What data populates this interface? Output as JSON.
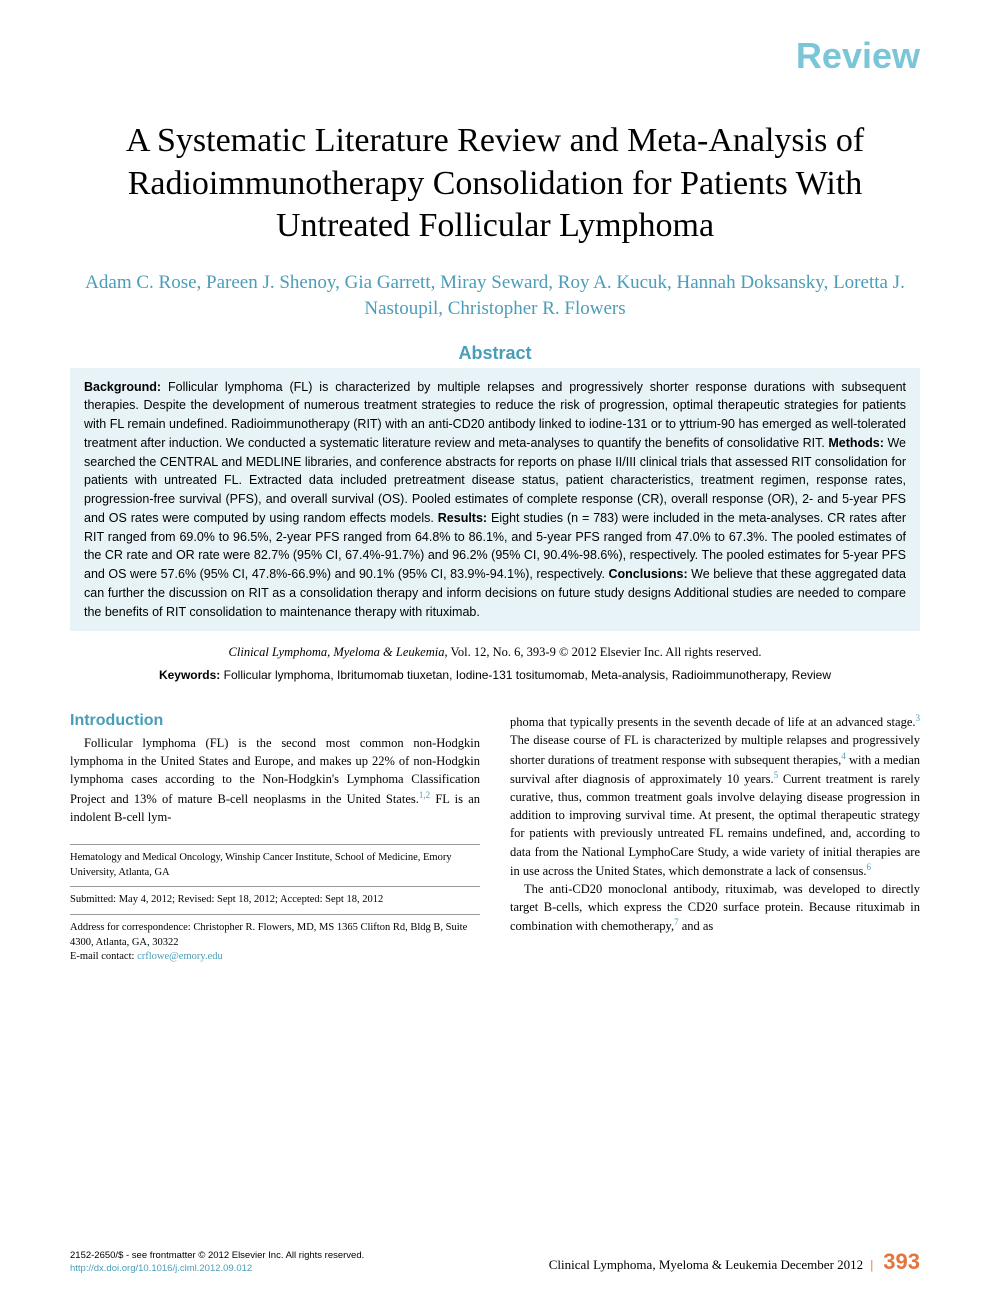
{
  "article_type": "Review",
  "colors": {
    "accent_teal": "#4a9db8",
    "accent_light_teal": "#7ac5d8",
    "abstract_bg": "#e8f3f7",
    "page_num_orange": "#e6743c",
    "text": "#000000",
    "background": "#ffffff"
  },
  "title": "A Systematic Literature Review and Meta-Analysis of Radioimmunotherapy Consolidation for Patients With Untreated Follicular Lymphoma",
  "authors": "Adam C. Rose, Pareen J. Shenoy, Gia Garrett, Miray Seward, Roy A. Kucuk, Hannah Doksansky, Loretta J. Nastoupil, Christopher R. Flowers",
  "abstract": {
    "heading": "Abstract",
    "background_label": "Background:",
    "background_text": " Follicular lymphoma (FL) is characterized by multiple relapses and progressively shorter response durations with subsequent therapies. Despite the development of numerous treatment strategies to reduce the risk of progression, optimal therapeutic strategies for patients with FL remain undefined. Radioimmunotherapy (RIT) with an anti-CD20 antibody linked to iodine-131 or to yttrium-90 has emerged as well-tolerated treatment after induction. We conducted a systematic literature review and meta-analyses to quantify the benefits of consolidative RIT. ",
    "methods_label": "Methods:",
    "methods_text": " We searched the CENTRAL and MEDLINE libraries, and conference abstracts for reports on phase II/III clinical trials that assessed RIT consolidation for patients with untreated FL. Extracted data included pretreatment disease status, patient characteristics, treatment regimen, response rates, progression-free survival (PFS), and overall survival (OS). Pooled estimates of complete response (CR), overall response (OR), 2- and 5-year PFS and OS rates were computed by using random effects models. ",
    "results_label": "Results:",
    "results_text": " Eight studies (n = 783) were included in the meta-analyses. CR rates after RIT ranged from 69.0% to 96.5%, 2-year PFS ranged from 64.8% to 86.1%, and 5-year PFS ranged from 47.0% to 67.3%. The pooled estimates of the CR rate and OR rate were 82.7% (95% CI, 67.4%-91.7%) and 96.2% (95% CI, 90.4%-98.6%), respectively. The pooled estimates for 5-year PFS and OS were 57.6% (95% CI, 47.8%-66.9%) and 90.1% (95% CI, 83.9%-94.1%), respectively. ",
    "conclusions_label": "Conclusions:",
    "conclusions_text": " We believe that these aggregated data can further the discussion on RIT as a consolidation therapy and inform decisions on future study designs Additional studies are needed to compare the benefits of RIT consolidation to maintenance therapy with rituximab."
  },
  "citation": {
    "journal": "Clinical Lymphoma, Myeloma & Leukemia,",
    "vol_info": " Vol. 12, No. 6, 393-9 © 2012 Elsevier Inc. All rights reserved."
  },
  "keywords": {
    "label": "Keywords:",
    "text": " Follicular lymphoma, Ibritumomab tiuxetan, Iodine-131 tositumomab, Meta-analysis, Radioimmunotherapy, Review"
  },
  "intro": {
    "heading": "Introduction",
    "para1_a": "Follicular lymphoma (FL) is the second most common non-Hodgkin lymphoma in the United States and Europe, and makes up 22% of non-Hodgkin lymphoma cases according to the Non-Hodgkin's Lymphoma Classification Project and 13% of mature B-cell neoplasms in the United States.",
    "ref1": "1,2",
    "para1_b": " FL is an indolent B-cell lym-",
    "para2_a": "phoma that typically presents in the seventh decade of life at an advanced stage.",
    "ref3": "3",
    "para2_b": " The disease course of FL is characterized by multiple relapses and progressively shorter durations of treatment response with subsequent therapies,",
    "ref4": "4",
    "para2_c": " with a median survival after diagnosis of approximately 10 years.",
    "ref5": "5",
    "para2_d": " Current treatment is rarely curative, thus, common treatment goals involve delaying disease progression in addition to improving survival time. At present, the optimal therapeutic strategy for patients with previously untreated FL remains undefined, and, according to data from the National LymphoCare Study, a wide variety of initial therapies are in use across the United States, which demonstrate a lack of consensus.",
    "ref6": "6",
    "para3_a": "The anti-CD20 monoclonal antibody, rituximab, was developed to directly target B-cells, which express the CD20 surface protein. Because rituximab in combination with chemotherapy,",
    "ref7": "7",
    "para3_b": " and as"
  },
  "affiliation": "Hematology and Medical Oncology, Winship Cancer Institute, School of Medicine, Emory University, Atlanta, GA",
  "submission": "Submitted: May 4, 2012; Revised: Sept 18, 2012; Accepted: Sept 18, 2012",
  "correspondence": {
    "line1": "Address for correspondence: Christopher R. Flowers, MD, MS 1365 Clifton Rd, Bldg B, Suite 4300, Atlanta, GA, 30322",
    "email_label": "E-mail contact: ",
    "email": "crflowe@emory.edu"
  },
  "footer": {
    "issn": "2152-2650/$ - see frontmatter © 2012 Elsevier Inc. All rights reserved.",
    "doi": "http://dx.doi.org/10.1016/j.clml.2012.09.012",
    "journal_issue": "Clinical Lymphoma, Myeloma & Leukemia",
    "date": "December 2012",
    "page_num": "393"
  }
}
